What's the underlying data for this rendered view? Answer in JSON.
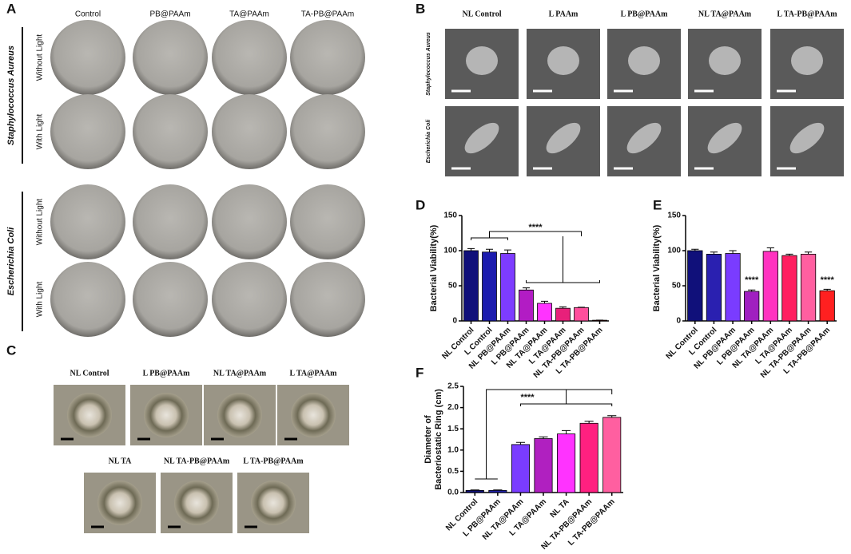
{
  "panel_letters": [
    "A",
    "B",
    "C",
    "D",
    "E",
    "F"
  ],
  "panel_a": {
    "columns": [
      "Control",
      "PB@PAAm",
      "TA@PAAm",
      "TA-PB@PAAm"
    ],
    "groups": [
      {
        "name": "Staphylococcus Aureus",
        "rows": [
          "Without Light",
          "With Light"
        ]
      },
      {
        "name": "Escherichia Coli",
        "rows": [
          "Without Light",
          "With Light"
        ]
      }
    ]
  },
  "panel_b": {
    "columns": [
      "NL Control",
      "L PAAm",
      "L PB@PAAm",
      "NL TA@PAAm",
      "L TA-PB@PAAm"
    ],
    "rows": [
      "Staphylococcus Aureus",
      "Escherichia Coli"
    ]
  },
  "panel_c": {
    "rows": [
      [
        "NL Control",
        "L PB@PAAm",
        "NL TA@PAAm",
        "L TA@PAAm"
      ],
      [
        "NL TA",
        "NL TA-PB@PAAm",
        "L TA-PB@PAAm"
      ]
    ]
  },
  "chart_data": [
    {
      "type": "bar",
      "y_label": "Bacterial Viability(%)",
      "categories": [
        "NL Control",
        "L Control",
        "NL PB@PAAm",
        "L PB@PAAm",
        "NL TA@PAAm",
        "L TA@PAAm",
        "NL TA-PB@PAAm",
        "L TA-PB@PAAm"
      ],
      "values": [
        100,
        98,
        96,
        44,
        25,
        18,
        19,
        1
      ],
      "errors": [
        3,
        4,
        5,
        3,
        3,
        2,
        0.5,
        0.2
      ],
      "colors": [
        "#10107a",
        "#1c1cae",
        "#7d3cff",
        "#b21cc4",
        "#ff33ff",
        "#e8207a",
        "#ff4f9c",
        "#ff2020"
      ],
      "ylim": [
        0,
        150
      ],
      "yticks": [
        0,
        50,
        100,
        150
      ],
      "annotations": [
        "****"
      ]
    },
    {
      "type": "bar",
      "y_label": "Bacterial Viability(%)",
      "categories": [
        "NL Control",
        "L Control",
        "NL PB@PAAm",
        "L PB@PAAm",
        "NL TA@PAAm",
        "L TA@PAAm",
        "NL TA-PB@PAAm",
        "L TA-PB@PAAm"
      ],
      "values": [
        100,
        95,
        96,
        42,
        99,
        93,
        95,
        43
      ],
      "errors": [
        2,
        3,
        4,
        2,
        5,
        2,
        3,
        2
      ],
      "colors": [
        "#10107a",
        "#2a20b0",
        "#7a3cff",
        "#a020c0",
        "#ff33c0",
        "#ff2060",
        "#ff5fa0",
        "#ff2020"
      ],
      "ylim": [
        0,
        150
      ],
      "yticks": [
        0,
        50,
        100,
        150
      ],
      "annotations": [
        "****",
        "****"
      ]
    },
    {
      "type": "bar",
      "y_label": [
        "Diameter of",
        "Bacteriostatic Ring (cm)"
      ],
      "categories": [
        "NL Control",
        "L PB@PAAm",
        "NL TA@PAAm",
        "L TA@PAAm",
        "NL TA",
        "NL TA-PB@PAAm",
        "L TA-PB@PAAm"
      ],
      "values": [
        0.05,
        0.05,
        1.13,
        1.27,
        1.38,
        1.63,
        1.77
      ],
      "errors": [
        0.01,
        0.01,
        0.05,
        0.04,
        0.08,
        0.05,
        0.04
      ],
      "colors": [
        "#10107a",
        "#2020a8",
        "#7a3cff",
        "#b020c0",
        "#ff33ff",
        "#ff2080",
        "#ff5fa0"
      ],
      "ylim": [
        0,
        2.5
      ],
      "yticks": [
        {
          "value": 0,
          "label": "0.0"
        },
        0.5,
        {
          "value": 1,
          "label": "1.0"
        },
        1.5,
        {
          "value": 2,
          "label": "2.0"
        },
        2.5
      ],
      "annotations": [
        "****"
      ]
    }
  ]
}
